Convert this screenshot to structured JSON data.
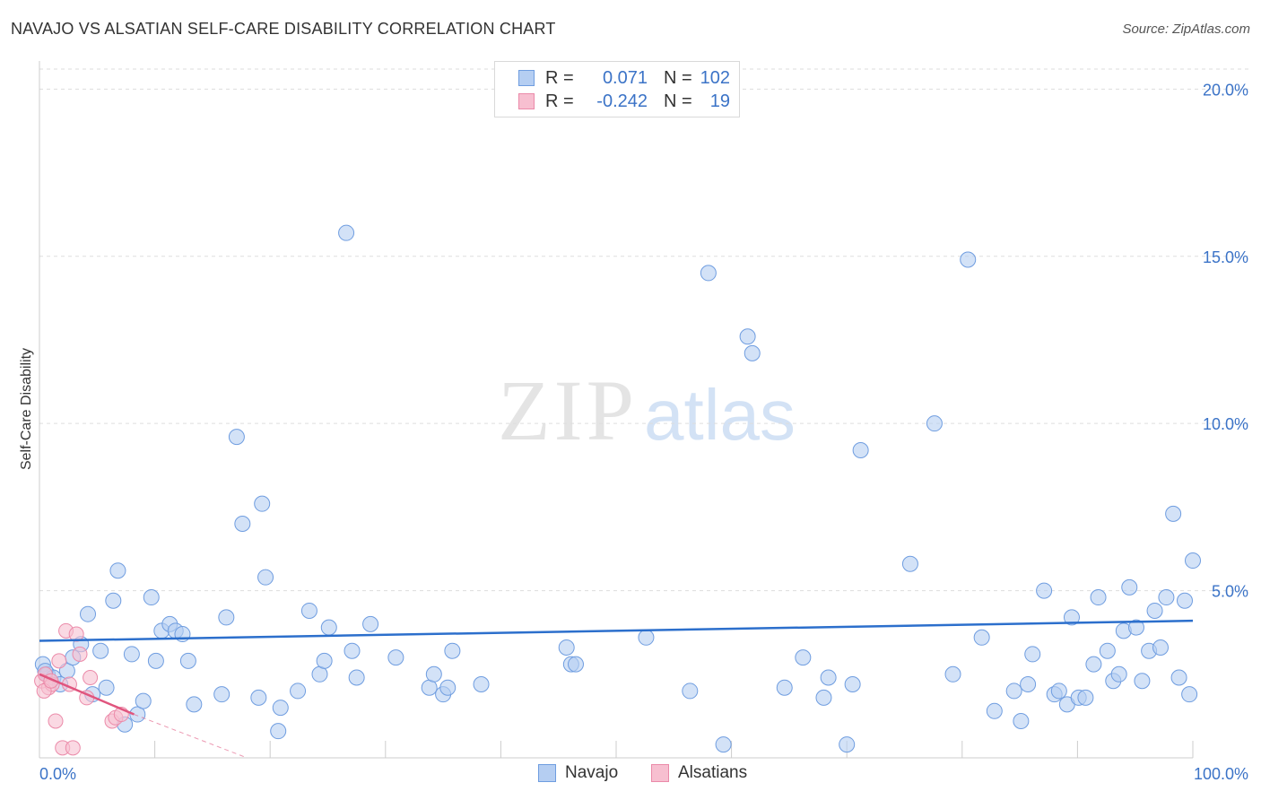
{
  "title": "NAVAJO VS ALSATIAN SELF-CARE DISABILITY CORRELATION CHART",
  "source": "Source: ZipAtlas.com",
  "watermark": {
    "zip": "ZIP",
    "atlas": "atlas"
  },
  "colors": {
    "navajo_fill": "#b5cef2",
    "navajo_stroke": "#6f9de0",
    "navajo_line": "#2c6fcc",
    "alsatian_fill": "#f7bfd0",
    "alsatian_stroke": "#eb8aa9",
    "alsatian_line": "#e0557e",
    "tick_text": "#3b73c7"
  },
  "legend": {
    "rows": [
      {
        "r_label": "R =",
        "r_value": "0.071",
        "n_label": "N =",
        "n_value": "102"
      },
      {
        "r_label": "R =",
        "r_value": "-0.242",
        "n_label": "N =",
        "n_value": "19"
      }
    ]
  },
  "chart_data": {
    "type": "scatter",
    "title": "NAVAJO VS ALSATIAN SELF-CARE DISABILITY CORRELATION CHART",
    "xlabel": "",
    "ylabel": "Self-Care Disability",
    "xlim": [
      0,
      100
    ],
    "ylim": [
      0,
      20.6
    ],
    "x_tick_labels": [
      "0.0%",
      "100.0%"
    ],
    "y_ticks": [
      5,
      10,
      15,
      20
    ],
    "y_tick_labels": [
      "5.0%",
      "10.0%",
      "15.0%",
      "20.0%"
    ],
    "legend_position": "bottom",
    "series": [
      {
        "name": "Navajo",
        "trend": {
          "x": [
            0,
            100
          ],
          "y": [
            3.5,
            4.1
          ]
        },
        "points": [
          [
            0.3,
            2.8
          ],
          [
            0.7,
            2.5
          ],
          [
            1.2,
            2.4
          ],
          [
            1.8,
            2.2
          ],
          [
            2.4,
            2.6
          ],
          [
            2.9,
            3.0
          ],
          [
            3.6,
            3.4
          ],
          [
            4.2,
            4.3
          ],
          [
            4.6,
            1.9
          ],
          [
            5.3,
            3.2
          ],
          [
            5.8,
            2.1
          ],
          [
            6.4,
            4.7
          ],
          [
            6.8,
            5.6
          ],
          [
            7.4,
            1.0
          ],
          [
            8.0,
            3.1
          ],
          [
            8.5,
            1.3
          ],
          [
            9.0,
            1.7
          ],
          [
            9.7,
            4.8
          ],
          [
            10.1,
            2.9
          ],
          [
            10.6,
            3.8
          ],
          [
            11.3,
            4.0
          ],
          [
            11.8,
            3.8
          ],
          [
            12.4,
            3.7
          ],
          [
            12.9,
            2.9
          ],
          [
            13.4,
            1.6
          ],
          [
            15.8,
            1.9
          ],
          [
            16.2,
            4.2
          ],
          [
            17.1,
            9.6
          ],
          [
            17.6,
            7.0
          ],
          [
            19.0,
            1.8
          ],
          [
            19.3,
            7.6
          ],
          [
            19.6,
            5.4
          ],
          [
            20.7,
            0.8
          ],
          [
            20.9,
            1.5
          ],
          [
            22.4,
            2.0
          ],
          [
            23.4,
            4.4
          ],
          [
            24.3,
            2.5
          ],
          [
            24.7,
            2.9
          ],
          [
            25.1,
            3.9
          ],
          [
            26.6,
            15.7
          ],
          [
            27.1,
            3.2
          ],
          [
            27.5,
            2.4
          ],
          [
            28.7,
            4.0
          ],
          [
            30.9,
            3.0
          ],
          [
            33.8,
            2.1
          ],
          [
            34.2,
            2.5
          ],
          [
            35.0,
            1.9
          ],
          [
            35.4,
            2.1
          ],
          [
            35.8,
            3.2
          ],
          [
            38.3,
            2.2
          ],
          [
            45.7,
            3.3
          ],
          [
            46.1,
            2.8
          ],
          [
            46.5,
            2.8
          ],
          [
            52.6,
            3.6
          ],
          [
            56.4,
            2.0
          ],
          [
            58.0,
            14.5
          ],
          [
            59.3,
            0.4
          ],
          [
            61.4,
            12.6
          ],
          [
            61.8,
            12.1
          ],
          [
            64.6,
            2.1
          ],
          [
            66.2,
            3.0
          ],
          [
            68.0,
            1.8
          ],
          [
            68.4,
            2.4
          ],
          [
            70.0,
            0.4
          ],
          [
            70.5,
            2.2
          ],
          [
            71.2,
            9.2
          ],
          [
            75.5,
            5.8
          ],
          [
            77.6,
            10.0
          ],
          [
            79.2,
            2.5
          ],
          [
            80.5,
            14.9
          ],
          [
            81.7,
            3.6
          ],
          [
            82.8,
            1.4
          ],
          [
            84.5,
            2.0
          ],
          [
            85.1,
            1.1
          ],
          [
            85.7,
            2.2
          ],
          [
            86.1,
            3.1
          ],
          [
            87.1,
            5.0
          ],
          [
            88.0,
            1.9
          ],
          [
            88.4,
            2.0
          ],
          [
            89.1,
            1.6
          ],
          [
            89.5,
            4.2
          ],
          [
            90.1,
            1.8
          ],
          [
            90.7,
            1.8
          ],
          [
            91.4,
            2.8
          ],
          [
            91.8,
            4.8
          ],
          [
            92.6,
            3.2
          ],
          [
            93.1,
            2.3
          ],
          [
            93.6,
            2.5
          ],
          [
            94.0,
            3.8
          ],
          [
            94.5,
            5.1
          ],
          [
            95.1,
            3.9
          ],
          [
            95.6,
            2.3
          ],
          [
            96.2,
            3.2
          ],
          [
            96.7,
            4.4
          ],
          [
            97.2,
            3.3
          ],
          [
            97.7,
            4.8
          ],
          [
            98.3,
            7.3
          ],
          [
            98.8,
            2.4
          ],
          [
            99.3,
            4.7
          ],
          [
            99.7,
            1.9
          ],
          [
            100.0,
            5.9
          ],
          [
            0.5,
            2.6
          ]
        ]
      },
      {
        "name": "Alsatians",
        "trend": {
          "x": [
            0,
            8.2
          ],
          "y": [
            2.5,
            1.3
          ]
        },
        "trend_extension": {
          "x": [
            8.2,
            18.0
          ],
          "y": [
            1.3,
            0.0
          ]
        },
        "points": [
          [
            0.2,
            2.3
          ],
          [
            0.5,
            2.5
          ],
          [
            0.8,
            2.1
          ],
          [
            1.1,
            2.2
          ],
          [
            1.4,
            1.1
          ],
          [
            1.7,
            2.9
          ],
          [
            2.0,
            0.3
          ],
          [
            2.3,
            3.8
          ],
          [
            2.6,
            2.2
          ],
          [
            2.9,
            0.3
          ],
          [
            3.2,
            3.7
          ],
          [
            3.5,
            3.1
          ],
          [
            4.1,
            1.8
          ],
          [
            4.4,
            2.4
          ],
          [
            6.3,
            1.1
          ],
          [
            6.6,
            1.2
          ],
          [
            7.1,
            1.3
          ],
          [
            0.4,
            2.0
          ],
          [
            1.0,
            2.3
          ]
        ]
      }
    ]
  }
}
